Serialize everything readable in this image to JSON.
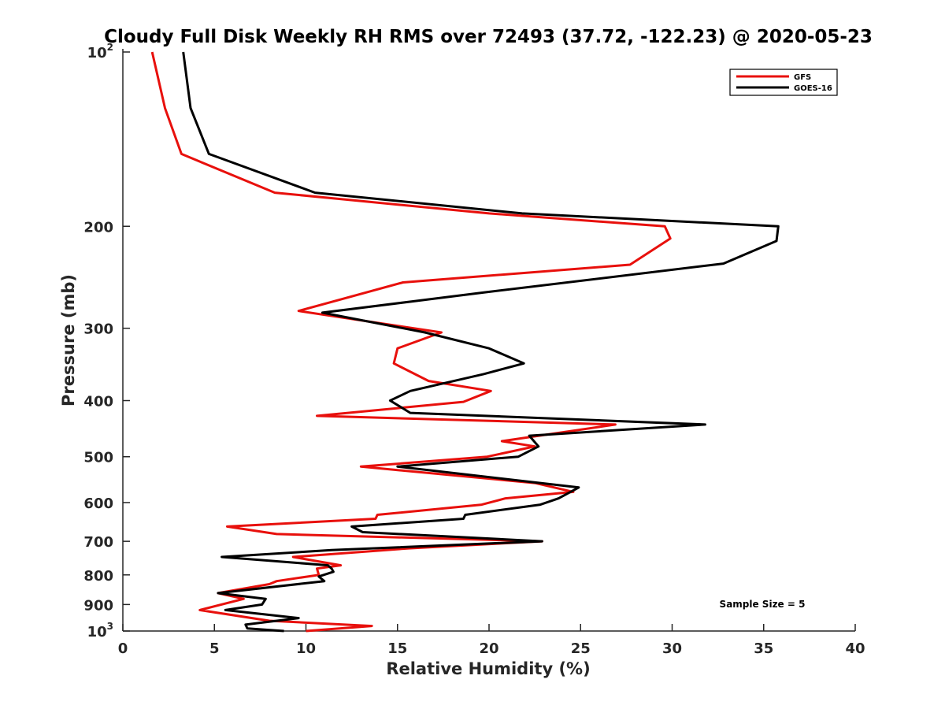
{
  "chart_data": {
    "type": "line",
    "title": "Cloudy Full Disk Weekly RH RMS over 72493 (37.72, -122.23) @ 2020-05-23",
    "xlabel": "Relative Humidity (%)",
    "ylabel": "Pressure (mb)",
    "xlim": [
      0,
      40
    ],
    "ylim": [
      100,
      1000
    ],
    "y_scale": "log",
    "y_reversed": true,
    "grid": false,
    "x_ticks": [
      "0",
      "5",
      "10",
      "15",
      "20",
      "25",
      "30",
      "35",
      "40"
    ],
    "y_ticks": [
      {
        "value": 100,
        "label": "10",
        "sup": "2"
      },
      {
        "value": 200,
        "label": "200",
        "sup": ""
      },
      {
        "value": 300,
        "label": "300",
        "sup": ""
      },
      {
        "value": 400,
        "label": "400",
        "sup": ""
      },
      {
        "value": 500,
        "label": "500",
        "sup": ""
      },
      {
        "value": 600,
        "label": "600",
        "sup": ""
      },
      {
        "value": 700,
        "label": "700",
        "sup": ""
      },
      {
        "value": 800,
        "label": "800",
        "sup": ""
      },
      {
        "value": 900,
        "label": "900",
        "sup": ""
      },
      {
        "value": 1000,
        "label": "10",
        "sup": "3"
      }
    ],
    "legend_position": "top-right",
    "annotation": "Sample Size = 5",
    "series": [
      {
        "name": "GFS",
        "color": "#e8100c",
        "points": [
          [
            1.6,
            100
          ],
          [
            2.3,
            125
          ],
          [
            3.2,
            150
          ],
          [
            8.3,
            175
          ],
          [
            20.0,
            190
          ],
          [
            29.6,
            200
          ],
          [
            29.9,
            210
          ],
          [
            27.7,
            233
          ],
          [
            15.3,
            250
          ],
          [
            9.6,
            280
          ],
          [
            17.4,
            305
          ],
          [
            15.0,
            325
          ],
          [
            14.8,
            345
          ],
          [
            16.7,
            370
          ],
          [
            20.1,
            385
          ],
          [
            18.6,
            402
          ],
          [
            10.6,
            425
          ],
          [
            26.9,
            440
          ],
          [
            20.7,
            470
          ],
          [
            22.5,
            480
          ],
          [
            19.9,
            500
          ],
          [
            13.0,
            520
          ],
          [
            22.5,
            555
          ],
          [
            24.6,
            575
          ],
          [
            20.9,
            590
          ],
          [
            19.6,
            605
          ],
          [
            13.9,
            630
          ],
          [
            13.8,
            640
          ],
          [
            5.7,
            660
          ],
          [
            8.4,
            680
          ],
          [
            22.9,
            700
          ],
          [
            15.6,
            720
          ],
          [
            9.3,
            745
          ],
          [
            11.9,
            770
          ],
          [
            10.6,
            780
          ],
          [
            10.7,
            800
          ],
          [
            8.4,
            820
          ],
          [
            8.0,
            830
          ],
          [
            5.2,
            860
          ],
          [
            6.6,
            880
          ],
          [
            4.2,
            920
          ],
          [
            8.0,
            960
          ],
          [
            13.6,
            980
          ],
          [
            10.0,
            1000
          ]
        ]
      },
      {
        "name": "GOES-16",
        "color": "#000000",
        "points": [
          [
            3.3,
            100
          ],
          [
            3.7,
            125
          ],
          [
            4.7,
            150
          ],
          [
            10.5,
            175
          ],
          [
            21.8,
            190
          ],
          [
            35.8,
            200
          ],
          [
            35.7,
            212
          ],
          [
            32.8,
            232
          ],
          [
            19.8,
            260
          ],
          [
            10.9,
            282
          ],
          [
            16.5,
            305
          ],
          [
            20.0,
            325
          ],
          [
            21.9,
            345
          ],
          [
            19.7,
            360
          ],
          [
            15.7,
            385
          ],
          [
            14.6,
            400
          ],
          [
            15.7,
            420
          ],
          [
            31.8,
            440
          ],
          [
            22.2,
            460
          ],
          [
            22.7,
            480
          ],
          [
            21.6,
            500
          ],
          [
            15.0,
            520
          ],
          [
            24.9,
            565
          ],
          [
            23.8,
            590
          ],
          [
            22.8,
            605
          ],
          [
            18.7,
            630
          ],
          [
            18.6,
            640
          ],
          [
            12.5,
            660
          ],
          [
            13.1,
            675
          ],
          [
            22.9,
            700
          ],
          [
            11.4,
            725
          ],
          [
            5.4,
            745
          ],
          [
            11.2,
            770
          ],
          [
            11.4,
            780
          ],
          [
            11.5,
            790
          ],
          [
            10.7,
            805
          ],
          [
            11.0,
            820
          ],
          [
            5.2,
            860
          ],
          [
            7.8,
            880
          ],
          [
            7.6,
            900
          ],
          [
            5.6,
            920
          ],
          [
            9.6,
            950
          ],
          [
            6.7,
            975
          ],
          [
            6.8,
            990
          ],
          [
            8.8,
            1000
          ]
        ]
      }
    ]
  }
}
